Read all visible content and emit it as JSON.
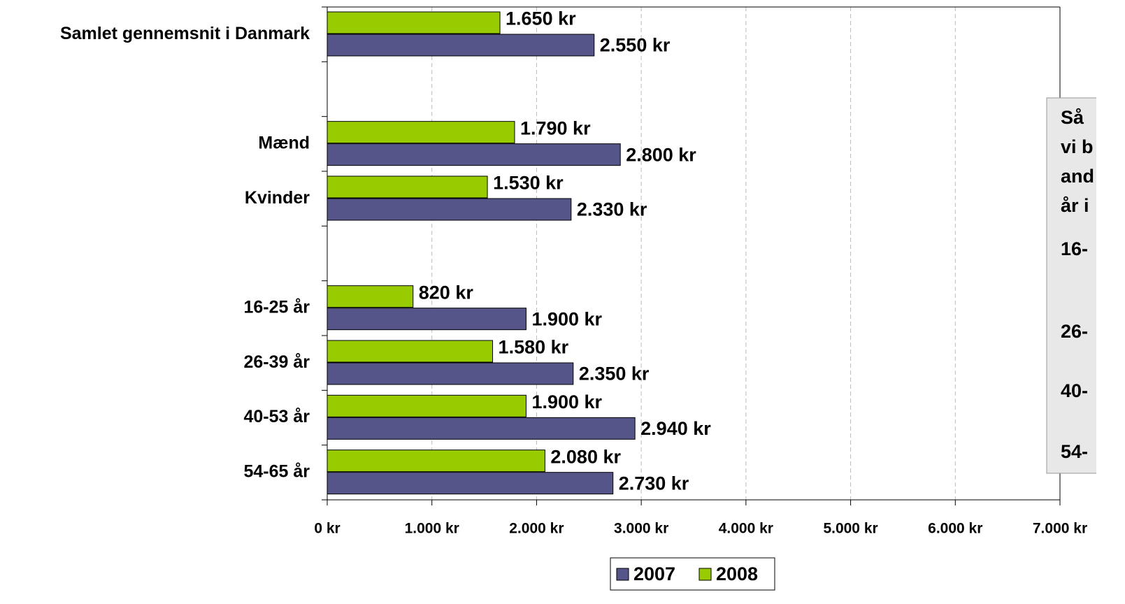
{
  "chart_data": {
    "type": "barh",
    "categories": [
      "Samlet gennemsnit i Danmark",
      null,
      "Mænd",
      "Kvinder",
      null,
      "16-25 år",
      "26-39 år",
      "40-53 år",
      "54-65 år"
    ],
    "series": [
      {
        "name": "2007",
        "color": "#55558a",
        "values": [
          2550,
          null,
          2800,
          2330,
          null,
          1900,
          2350,
          2940,
          2730
        ],
        "value_labels": [
          "2.550 kr",
          null,
          "2.800 kr",
          "2.330 kr",
          null,
          "1.900 kr",
          "2.350 kr",
          "2.940 kr",
          "2.730 kr"
        ]
      },
      {
        "name": "2008",
        "color": "#99cc00",
        "values": [
          1650,
          null,
          1790,
          1530,
          null,
          820,
          1580,
          1900,
          2080
        ],
        "value_labels": [
          "1.650 kr",
          null,
          "1.790 kr",
          "1.530 kr",
          null,
          "820 kr",
          "1.580 kr",
          "1.900 kr",
          "2.080 kr"
        ]
      }
    ],
    "xlim": [
      0,
      7000
    ],
    "xticks": [
      {
        "value": 0,
        "label": "0 kr"
      },
      {
        "value": 1000,
        "label": "1.000 kr"
      },
      {
        "value": 2000,
        "label": "2.000 kr"
      },
      {
        "value": 3000,
        "label": "3.000 kr"
      },
      {
        "value": 4000,
        "label": "4.000 kr"
      },
      {
        "value": 5000,
        "label": "5.000 kr"
      },
      {
        "value": 6000,
        "label": "6.000 kr"
      },
      {
        "value": 7000,
        "label": "7.000 kr"
      }
    ],
    "grid": true,
    "legend": "bottom",
    "annotation": [
      "Så",
      "vi b",
      "and",
      "år i",
      "16-",
      "26-",
      "40-",
      "54-"
    ]
  }
}
